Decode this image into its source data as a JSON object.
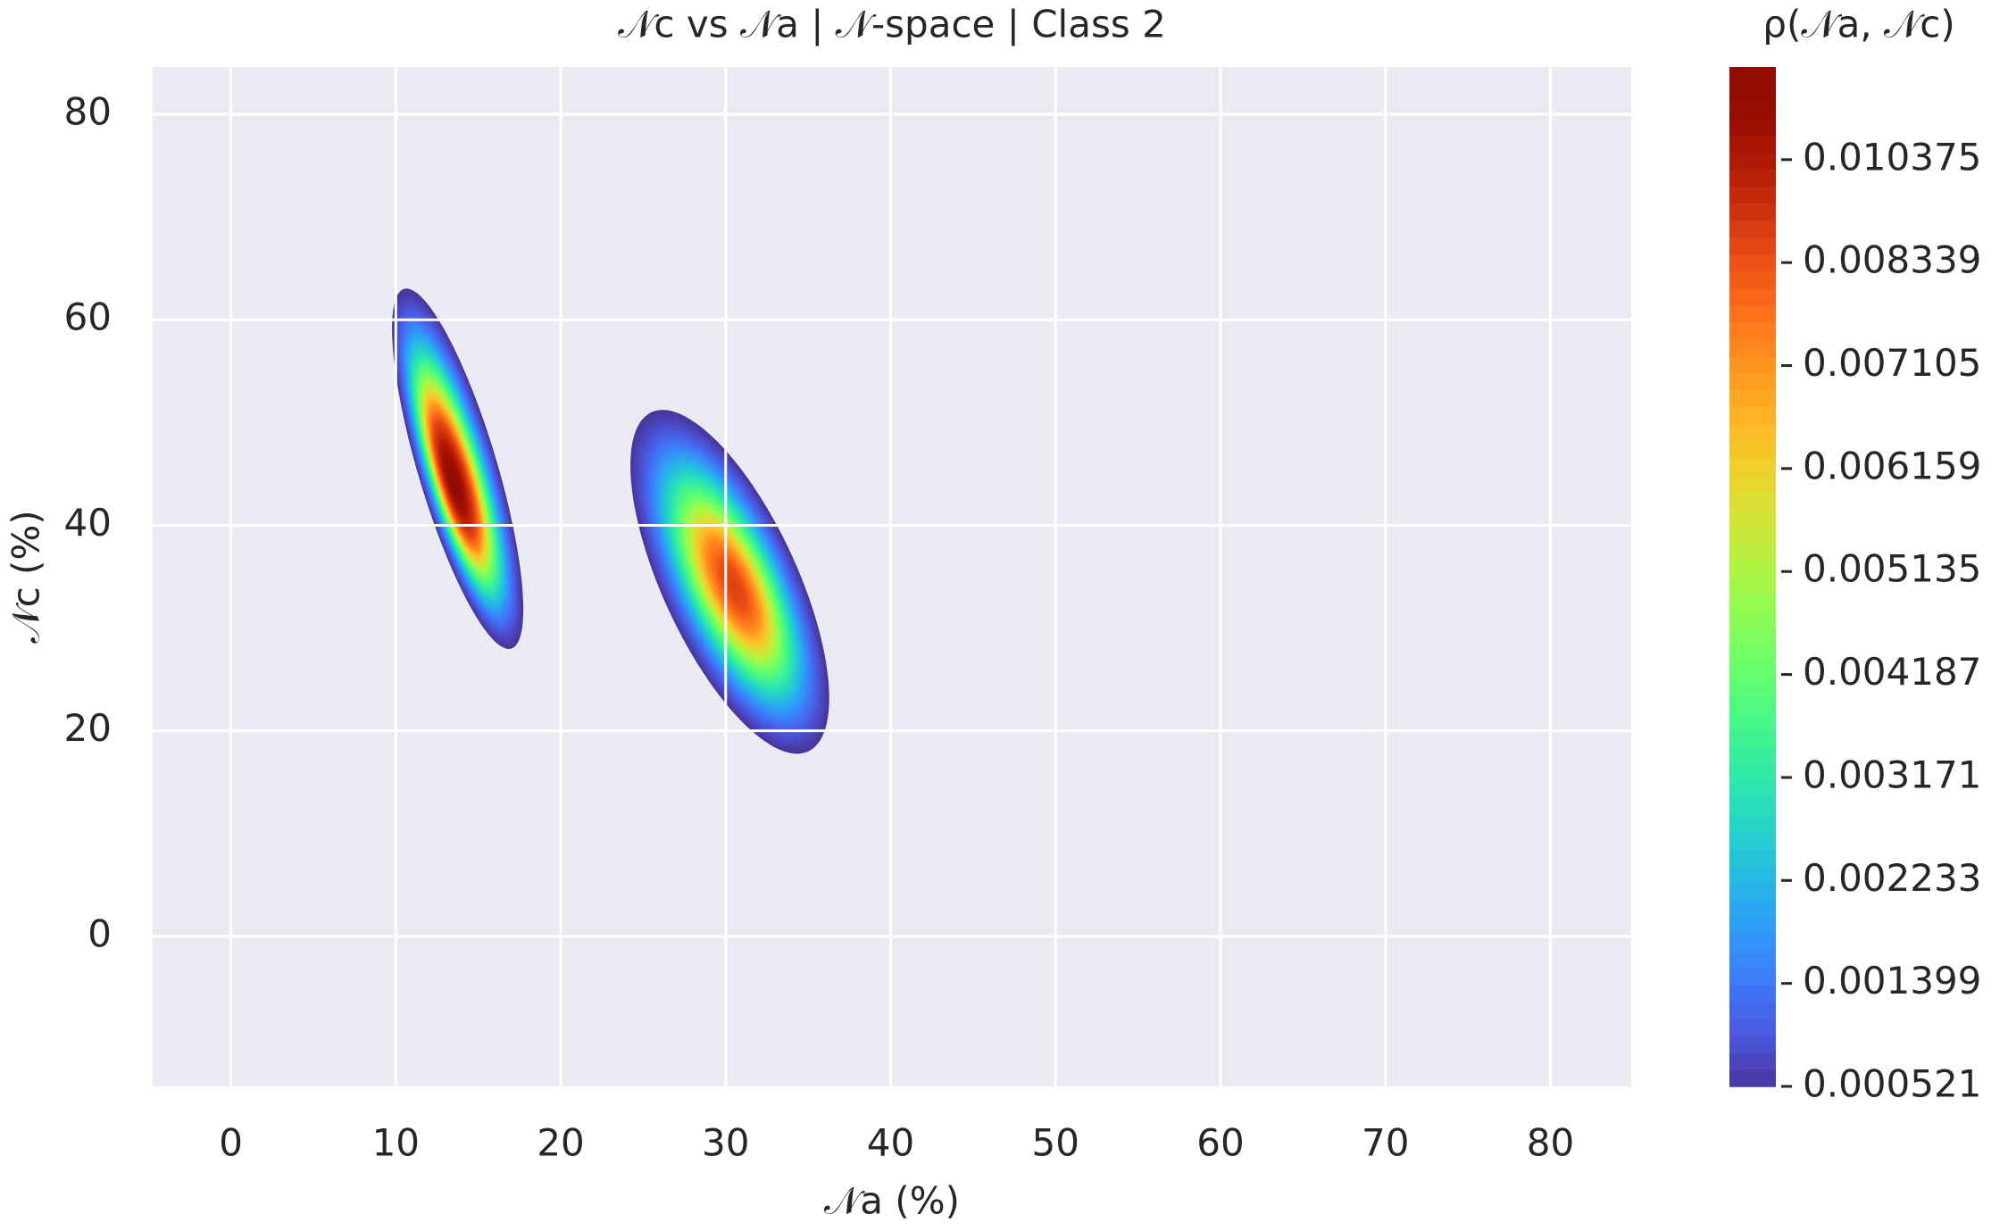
{
  "chart_data": {
    "type": "kde",
    "title": "𝒩c vs 𝒩a  | 𝒩-space | Class 2",
    "x_label": "𝒩a (%)",
    "y_label": "𝒩c (%)",
    "xlim": [
      -4.74,
      84.9
    ],
    "xticks": [
      0,
      10,
      20,
      30,
      40,
      50,
      60,
      70,
      80
    ],
    "ylim": [
      -14.6,
      84.6
    ],
    "yticks": [
      0,
      20,
      40,
      60,
      80
    ],
    "grid": true,
    "colormap": "turbo",
    "colorbar": {
      "label": "ρ(𝒩a, 𝒩c)",
      "ticks": [
        0.000521,
        0.001399,
        0.002233,
        0.003171,
        0.004187,
        0.005135,
        0.006159,
        0.007105,
        0.008339,
        0.010375
      ]
    },
    "peaks": [
      {
        "x": 13.5,
        "y": 44,
        "density": 0.0118,
        "xrange": [
          10.5,
          17
        ],
        "yrange": [
          28,
          63
        ],
        "width": 5
      },
      {
        "x": 30.5,
        "y": 34,
        "density": 0.0088,
        "xrange": [
          25.5,
          35
        ],
        "yrange": [
          18,
          51
        ],
        "width": 9
      }
    ]
  }
}
